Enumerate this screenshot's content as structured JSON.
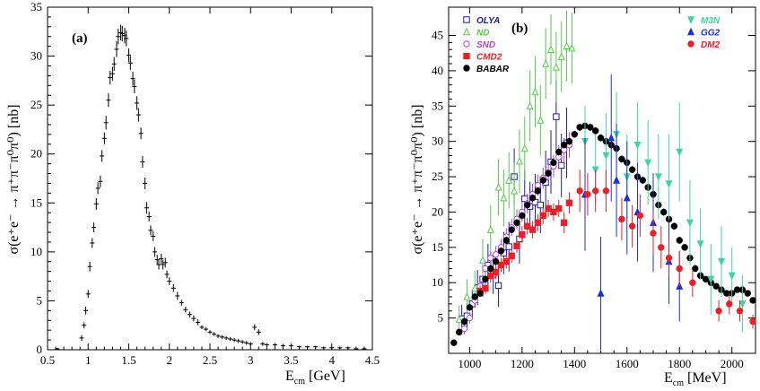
{
  "chart_data": [
    {
      "type": "scatter",
      "panel_label": "(a)",
      "xlabel_main": "E",
      "xlabel_sub": "cm",
      "xlabel_unit": "[GeV]",
      "ylabel_prefix": "σ(e",
      "ylabel_unit": "[nb]",
      "ylabel_full": "σ(e⁺e⁻ → π⁺π⁻π⁰π⁰) [nb]",
      "xlim": [
        0.5,
        4.5
      ],
      "ylim": [
        0,
        35
      ],
      "xticks": [
        0.5,
        1,
        1.5,
        2,
        2.5,
        3,
        3.5,
        4,
        4.5
      ],
      "yticks": [
        0,
        5,
        10,
        15,
        20,
        25,
        30,
        35
      ],
      "xtick_labels": [
        "0.5",
        "1",
        "1.5",
        "2",
        "2.5",
        "3",
        "3.5",
        "4",
        "4.5"
      ],
      "ytick_labels": [
        "0",
        "5",
        "10",
        "15",
        "20",
        "25",
        "30",
        "35"
      ],
      "grid": false,
      "series": [
        {
          "color": "#000000",
          "x": [
            0.62,
            0.92,
            0.95,
            0.97,
            1.0,
            1.02,
            1.05,
            1.07,
            1.1,
            1.12,
            1.15,
            1.17,
            1.2,
            1.22,
            1.25,
            1.27,
            1.3,
            1.32,
            1.35,
            1.37,
            1.4,
            1.42,
            1.45,
            1.47,
            1.5,
            1.52,
            1.55,
            1.57,
            1.6,
            1.62,
            1.65,
            1.67,
            1.7,
            1.72,
            1.75,
            1.77,
            1.8,
            1.82,
            1.85,
            1.87,
            1.9,
            1.92,
            1.95,
            1.97,
            2.0,
            2.05,
            2.1,
            2.15,
            2.2,
            2.25,
            2.3,
            2.35,
            2.4,
            2.45,
            2.5,
            2.55,
            2.6,
            2.65,
            2.7,
            2.75,
            2.8,
            2.85,
            2.9,
            2.95,
            3.0,
            3.05,
            3.1,
            3.15,
            3.2,
            3.3,
            3.4,
            3.5,
            3.6,
            3.7,
            3.8,
            3.9,
            4.0,
            4.1,
            4.2,
            4.3,
            4.4
          ],
          "y": [
            0.1,
            1.2,
            2.5,
            4.0,
            5.7,
            8.5,
            10.9,
            12.5,
            14.9,
            16.5,
            17.2,
            19.8,
            21.6,
            23.2,
            25.5,
            27.8,
            28.2,
            29.2,
            30.7,
            32.0,
            32.4,
            32.3,
            32.1,
            31.8,
            30.1,
            29.3,
            27.7,
            26.9,
            25.2,
            24.0,
            22.1,
            19.2,
            17.0,
            14.5,
            13.6,
            12.2,
            11.6,
            10.0,
            9.2,
            8.7,
            9.3,
            8.7,
            8.9,
            7.7,
            7.0,
            6.3,
            5.5,
            4.8,
            4.1,
            3.6,
            3.2,
            2.8,
            2.3,
            2.1,
            1.8,
            1.6,
            1.4,
            1.3,
            1.2,
            1.1,
            1.0,
            0.9,
            0.8,
            0.7,
            0.6,
            2.3,
            1.8,
            0.6,
            0.5,
            0.5,
            0.4,
            0.4,
            0.3,
            0.3,
            0.3,
            0.2,
            0.2,
            0.2,
            0.2,
            0.1,
            0.1
          ],
          "err": [
            0.1,
            0.3,
            0.3,
            0.4,
            0.4,
            0.5,
            0.5,
            0.5,
            0.6,
            0.6,
            0.6,
            0.6,
            0.6,
            0.7,
            0.7,
            0.7,
            0.7,
            0.7,
            0.8,
            0.8,
            0.8,
            0.8,
            0.8,
            0.8,
            0.7,
            0.7,
            0.7,
            0.7,
            0.7,
            0.7,
            0.6,
            0.6,
            0.6,
            0.6,
            0.5,
            0.5,
            0.5,
            0.5,
            0.5,
            0.5,
            0.5,
            0.5,
            0.5,
            0.4,
            0.4,
            0.4,
            0.4,
            0.3,
            0.3,
            0.3,
            0.3,
            0.3,
            0.2,
            0.2,
            0.2,
            0.2,
            0.2,
            0.2,
            0.2,
            0.2,
            0.2,
            0.2,
            0.2,
            0.2,
            0.2,
            0.3,
            0.3,
            0.2,
            0.2,
            0.2,
            0.2,
            0.1,
            0.1,
            0.1,
            0.1,
            0.1,
            0.1,
            0.1,
            0.1,
            0.1,
            0.1
          ]
        }
      ]
    },
    {
      "type": "scatter",
      "panel_label": "(b)",
      "xlabel_main": "E",
      "xlabel_sub": "cm",
      "xlabel_unit": "[MeV]",
      "ylabel_full": "σ(e⁺e⁻ → π⁺π⁻π⁰π⁰) [nb]",
      "xlim": [
        920,
        2090
      ],
      "ylim": [
        0,
        49
      ],
      "xticks": [
        1000,
        1200,
        1400,
        1600,
        1800,
        2000
      ],
      "yticks": [
        5,
        10,
        15,
        20,
        25,
        30,
        35,
        40,
        45
      ],
      "xtick_labels": [
        "1000",
        "1200",
        "1400",
        "1600",
        "1800",
        "2000"
      ],
      "ytick_labels": [
        "5",
        "10",
        "15",
        "20",
        "25",
        "30",
        "35",
        "40",
        "45"
      ],
      "grid": false,
      "legend_left": [
        "OLYA",
        "ND",
        "SND",
        "CMD2",
        "BABAR"
      ],
      "legend_right": [
        "M3N",
        "GG2",
        "DM2"
      ],
      "series": [
        {
          "name": "OLYA",
          "color": "#1a1aa6",
          "marker": "square-open",
          "x": [
            970,
            990,
            1010,
            1030,
            1050,
            1070,
            1090,
            1110,
            1130,
            1150,
            1170,
            1190,
            1210,
            1230,
            1250,
            1270,
            1290,
            1310,
            1330,
            1350,
            1370
          ],
          "y": [
            4.9,
            5.3,
            7.0,
            9.3,
            10.5,
            12.5,
            11.2,
            9.6,
            14.2,
            15.1,
            25.0,
            16.2,
            21.9,
            20.8,
            21.4,
            21.0,
            24.2,
            27.1,
            33.5,
            26.6,
            29.8
          ],
          "err": [
            2.0,
            1.8,
            2.0,
            2.5,
            2.5,
            3.0,
            2.8,
            3.0,
            3.0,
            3.5,
            4.0,
            3.5,
            4.0,
            3.5,
            4.0,
            4.0,
            4.5,
            4.5,
            5.0,
            4.5,
            5.0
          ]
        },
        {
          "name": "ND",
          "color": "#55c94a",
          "marker": "triangle-up-open",
          "x": [
            960,
            990,
            1020,
            1050,
            1080,
            1110,
            1130,
            1150,
            1170,
            1190,
            1210,
            1230,
            1250,
            1270,
            1290,
            1310,
            1330,
            1350,
            1370,
            1390
          ],
          "y": [
            4.8,
            8.0,
            9.2,
            13.2,
            17.5,
            23.5,
            22.0,
            24.5,
            23.0,
            27.2,
            29.0,
            35.0,
            37.0,
            33.0,
            41.0,
            43.0,
            40.5,
            42.0,
            43.5,
            43.2
          ],
          "err": [
            2.0,
            2.5,
            2.5,
            3.0,
            3.5,
            4.0,
            4.0,
            4.0,
            4.0,
            4.5,
            4.5,
            5.0,
            5.0,
            5.0,
            5.0,
            5.0,
            5.0,
            5.0,
            5.0,
            5.0
          ]
        },
        {
          "name": "SND",
          "color": "#b044d8",
          "marker": "circle-open",
          "x": [
            980,
            1000,
            1020,
            1040,
            1060,
            1080,
            1100,
            1120,
            1140,
            1160,
            1180,
            1200,
            1220,
            1240,
            1260,
            1280,
            1300,
            1320,
            1340,
            1360,
            1380
          ],
          "y": [
            3.5,
            5.0,
            7.5,
            9.5,
            12.0,
            13.5,
            14.0,
            15.0,
            16.5,
            17.8,
            19.0,
            20.0,
            21.2,
            22.5,
            23.8,
            24.8,
            25.5,
            26.5,
            27.8,
            28.8,
            29.5
          ],
          "err": [
            0.8,
            0.8,
            1.0,
            1.0,
            1.0,
            1.0,
            1.2,
            1.2,
            1.2,
            1.2,
            1.4,
            1.4,
            1.4,
            1.5,
            1.5,
            1.5,
            1.6,
            1.6,
            1.7,
            1.7,
            1.8
          ]
        },
        {
          "name": "CMD2",
          "color": "#e8202a",
          "marker": "square-filled",
          "x": [
            1040,
            1060,
            1080,
            1100,
            1120,
            1140,
            1160,
            1180,
            1200,
            1220,
            1240,
            1260,
            1280,
            1300,
            1320,
            1340,
            1360,
            1380
          ],
          "y": [
            8.8,
            9.2,
            11.0,
            11.5,
            12.5,
            13.0,
            13.8,
            15.2,
            16.8,
            18.0,
            17.5,
            18.5,
            19.5,
            20.5,
            20.0,
            20.5,
            18.5,
            21.3
          ],
          "err": [
            0.8,
            0.8,
            1.0,
            1.0,
            1.0,
            1.0,
            1.0,
            1.0,
            1.2,
            1.2,
            1.2,
            1.2,
            1.2,
            1.2,
            1.2,
            1.2,
            1.5,
            1.5
          ]
        },
        {
          "name": "BABAR",
          "color": "#000000",
          "marker": "circle-filled",
          "x": [
            940,
            960,
            980,
            1000,
            1020,
            1040,
            1060,
            1080,
            1100,
            1120,
            1140,
            1160,
            1180,
            1200,
            1220,
            1240,
            1260,
            1280,
            1300,
            1320,
            1340,
            1360,
            1380,
            1400,
            1420,
            1440,
            1460,
            1480,
            1500,
            1520,
            1540,
            1560,
            1580,
            1600,
            1620,
            1640,
            1660,
            1680,
            1700,
            1720,
            1740,
            1760,
            1780,
            1800,
            1820,
            1840,
            1860,
            1880,
            1900,
            1920,
            1940,
            1960,
            1980,
            2000,
            2020,
            2040,
            2060,
            2080
          ],
          "y": [
            1.5,
            3.0,
            4.5,
            6.5,
            8.0,
            8.5,
            10.5,
            12.0,
            13.0,
            14.5,
            16.0,
            17.5,
            18.5,
            19.5,
            21.0,
            22.0,
            23.0,
            24.5,
            25.5,
            27.0,
            28.5,
            29.5,
            30.0,
            31.0,
            32.0,
            32.2,
            32.0,
            31.5,
            30.5,
            30.0,
            29.5,
            29.0,
            27.5,
            27.0,
            26.0,
            25.0,
            24.5,
            23.5,
            22.5,
            21.0,
            20.0,
            19.0,
            18.0,
            16.0,
            15.0,
            13.5,
            12.0,
            11.0,
            10.5,
            10.0,
            9.5,
            9.0,
            8.5,
            8.5,
            9.0,
            9.0,
            8.5,
            7.5
          ],
          "err": [
            0.3,
            0.4,
            0.4,
            0.5,
            0.5,
            0.5,
            0.5,
            0.5,
            0.5,
            0.5,
            0.5,
            0.5,
            0.5,
            0.5,
            0.5,
            0.5,
            0.5,
            0.5,
            0.5,
            0.5,
            0.5,
            0.5,
            0.5,
            0.5,
            0.5,
            0.5,
            0.5,
            0.5,
            0.5,
            0.5,
            0.5,
            0.5,
            0.5,
            0.5,
            0.5,
            0.5,
            0.5,
            0.5,
            0.5,
            0.5,
            0.5,
            0.5,
            0.5,
            0.5,
            0.5,
            0.5,
            0.5,
            0.5,
            0.4,
            0.4,
            0.4,
            0.4,
            0.4,
            0.4,
            0.4,
            0.4,
            0.4,
            0.4
          ]
        },
        {
          "name": "M3N",
          "color": "#3fd3a5",
          "marker": "triangle-down-filled",
          "x": [
            1440,
            1480,
            1520,
            1560,
            1600,
            1640,
            1680,
            1720,
            1760,
            1800,
            1840,
            1880,
            1920,
            1960,
            2000,
            2040
          ],
          "y": [
            30.0,
            26.0,
            28.0,
            31.0,
            25.0,
            29.5,
            27.0,
            25.0,
            24.0,
            28.5,
            18.5,
            15.5,
            10.5,
            13.0,
            11.0,
            7.0
          ],
          "err": [
            5.0,
            5.0,
            6.0,
            6.0,
            6.0,
            6.0,
            6.0,
            6.0,
            7.0,
            7.0,
            6.0,
            5.0,
            5.0,
            5.0,
            4.0,
            4.0
          ]
        },
        {
          "name": "GG2",
          "color": "#1a2fe0",
          "marker": "triangle-up-filled",
          "x": [
            1440,
            1500,
            1540,
            1560,
            1600,
            1640,
            1700,
            1760,
            1800
          ],
          "y": [
            22.5,
            8.5,
            30.5,
            24.5,
            22.0,
            20.0,
            18.5,
            13.0,
            9.5
          ],
          "err": [
            8.0,
            8.0,
            9.0,
            8.0,
            8.0,
            7.0,
            7.0,
            6.0,
            5.0
          ]
        },
        {
          "name": "DM2",
          "color": "#e8202a",
          "marker": "circle-filled",
          "x": [
            1420,
            1450,
            1480,
            1520,
            1580,
            1620,
            1650,
            1700,
            1730,
            1760,
            1800,
            1850,
            1950,
            1990,
            2030,
            2080
          ],
          "y": [
            23.0,
            22.5,
            23.0,
            23.0,
            19.0,
            18.0,
            19.5,
            17.0,
            15.0,
            13.5,
            12.0,
            10.0,
            6.0,
            7.0,
            6.0,
            4.5
          ],
          "err": [
            3.0,
            3.0,
            3.0,
            3.0,
            3.0,
            3.0,
            3.0,
            3.0,
            3.0,
            2.5,
            2.5,
            2.0,
            1.5,
            1.5,
            1.5,
            1.0
          ]
        }
      ]
    }
  ]
}
